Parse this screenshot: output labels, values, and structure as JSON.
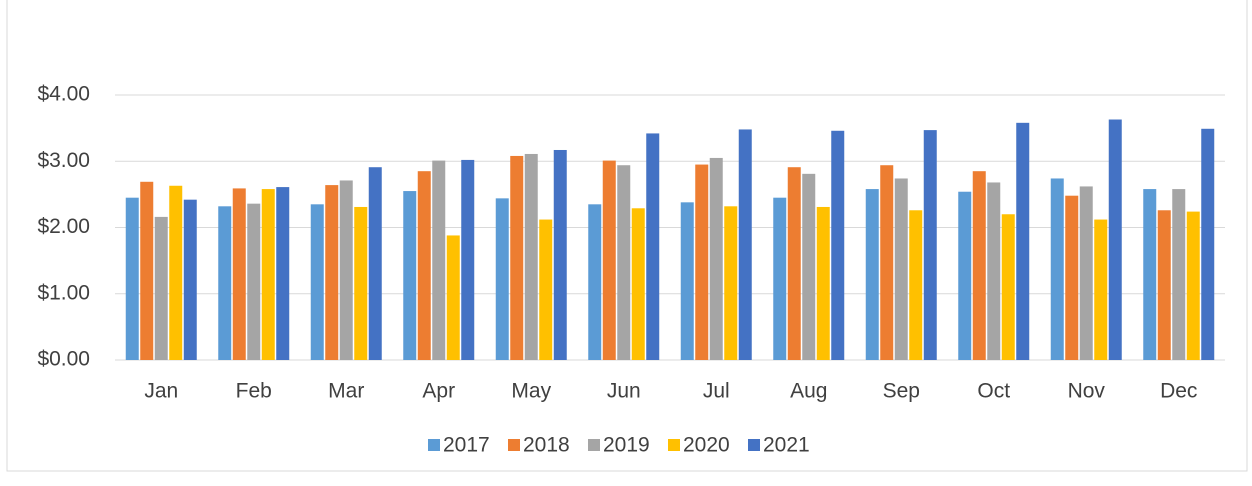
{
  "chart_data": {
    "type": "bar",
    "categories": [
      "Jan",
      "Feb",
      "Mar",
      "Apr",
      "May",
      "Jun",
      "Jul",
      "Aug",
      "Sep",
      "Oct",
      "Nov",
      "Dec"
    ],
    "series": [
      {
        "name": "2017",
        "color": "#5b9bd5",
        "values": [
          2.45,
          2.32,
          2.35,
          2.55,
          2.44,
          2.35,
          2.38,
          2.45,
          2.58,
          2.54,
          2.74,
          2.58
        ]
      },
      {
        "name": "2018",
        "color": "#ed7d31",
        "values": [
          2.69,
          2.59,
          2.64,
          2.85,
          3.08,
          3.01,
          2.95,
          2.91,
          2.94,
          2.85,
          2.48,
          2.26
        ]
      },
      {
        "name": "2019",
        "color": "#a5a5a5",
        "values": [
          2.16,
          2.36,
          2.71,
          3.01,
          3.11,
          2.94,
          3.05,
          2.81,
          2.74,
          2.68,
          2.62,
          2.58
        ]
      },
      {
        "name": "2020",
        "color": "#ffc000",
        "values": [
          2.63,
          2.58,
          2.31,
          1.88,
          2.12,
          2.29,
          2.32,
          2.31,
          2.26,
          2.2,
          2.12,
          2.24
        ]
      },
      {
        "name": "2021",
        "color": "#4472c4",
        "values": [
          2.42,
          2.61,
          2.91,
          3.02,
          3.17,
          3.42,
          3.48,
          3.46,
          3.47,
          3.58,
          3.63,
          3.49
        ]
      }
    ],
    "ylim": [
      0,
      4
    ],
    "yticks": [
      {
        "value": 0,
        "label": "$0.00"
      },
      {
        "value": 1,
        "label": "$1.00"
      },
      {
        "value": 2,
        "label": "$2.00"
      },
      {
        "value": 3,
        "label": "$3.00"
      },
      {
        "value": 4,
        "label": "$4.00"
      }
    ],
    "grid": true,
    "legend": "bottom"
  }
}
